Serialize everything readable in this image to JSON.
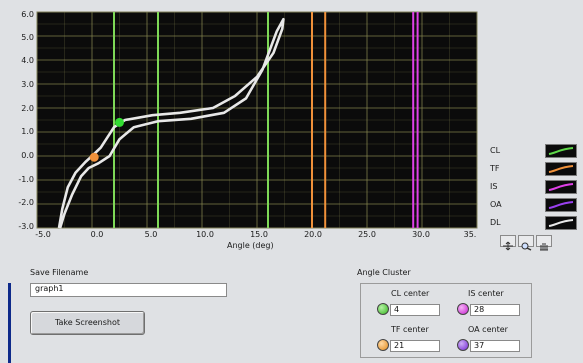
{
  "graph": {
    "ylim": [
      -3.0,
      6.0
    ],
    "xlim": [
      -5.0,
      35.0
    ],
    "yticks": [
      "6.0",
      "5.0",
      "4.0",
      "3.0",
      "2.0",
      "1.0",
      "0.0",
      "-1.0",
      "-2.0",
      "-3.0"
    ],
    "xticks": [
      "-5.0",
      "0.0",
      "5.0",
      "10.0",
      "15.0",
      "20.0",
      "25.0",
      "30.0",
      "35."
    ],
    "xlabel": "Angle (deg)",
    "background": "#0b0b0b",
    "grid_color": "#8a8a52",
    "vertical_lines": [
      {
        "x": 2,
        "color": "#7ed957"
      },
      {
        "x": 6,
        "color": "#7ed957"
      },
      {
        "x": 16,
        "color": "#7ed957"
      },
      {
        "x": 20,
        "color": "#f0913a"
      },
      {
        "x": 21.2,
        "color": "#f0913a"
      },
      {
        "x": 29.2,
        "color": "#e040e8"
      },
      {
        "x": 29.6,
        "color": "#e040e8"
      }
    ],
    "curve": {
      "color": "#e8e8e8",
      "points": [
        [
          -3.0,
          -3.0
        ],
        [
          -2.7,
          -2.2
        ],
        [
          -2.2,
          -1.3
        ],
        [
          -1.5,
          -0.7
        ],
        [
          -0.6,
          -0.25
        ],
        [
          0.0,
          0.0
        ],
        [
          0.8,
          0.35
        ],
        [
          2.0,
          1.2
        ],
        [
          3.0,
          1.5
        ],
        [
          5.5,
          1.7
        ],
        [
          8.0,
          1.8
        ],
        [
          11.0,
          2.0
        ],
        [
          13.0,
          2.5
        ],
        [
          15.0,
          3.3
        ],
        [
          16.5,
          4.3
        ],
        [
          17.3,
          5.3
        ],
        [
          17.4,
          5.7
        ],
        [
          16.8,
          5.2
        ],
        [
          15.5,
          3.6
        ],
        [
          14.0,
          2.4
        ],
        [
          12.0,
          1.8
        ],
        [
          9.0,
          1.55
        ],
        [
          6.0,
          1.45
        ],
        [
          3.8,
          1.2
        ],
        [
          2.5,
          0.7
        ],
        [
          1.6,
          0.0
        ],
        [
          0.6,
          -0.3
        ],
        [
          -0.3,
          -0.5
        ],
        [
          -1.0,
          -0.85
        ],
        [
          -1.8,
          -1.6
        ],
        [
          -2.5,
          -2.4
        ],
        [
          -2.9,
          -3.0
        ]
      ]
    },
    "markers": [
      {
        "x": 2.5,
        "y": 1.4,
        "color": "#33dd33"
      },
      {
        "x": 0.2,
        "y": -0.05,
        "color": "#f0913a"
      }
    ]
  },
  "legend": [
    {
      "label": "CL",
      "color": "#5fd84a"
    },
    {
      "label": "TF",
      "color": "#f0913a"
    },
    {
      "label": "IS",
      "color": "#e040e8"
    },
    {
      "label": "OA",
      "color": "#9a40f0"
    },
    {
      "label": "DL",
      "color": "#e8e8e8"
    }
  ],
  "save": {
    "label": "Save Filename",
    "value": "graph1",
    "button": "Take Screenshot"
  },
  "cluster": {
    "title": "Angle Cluster",
    "cl_label": "CL center",
    "cl_value": "4",
    "is_label": "IS center",
    "is_value": "28",
    "tf_label": "TF center",
    "tf_value": "21",
    "oa_label": "OA center",
    "oa_value": "37"
  }
}
